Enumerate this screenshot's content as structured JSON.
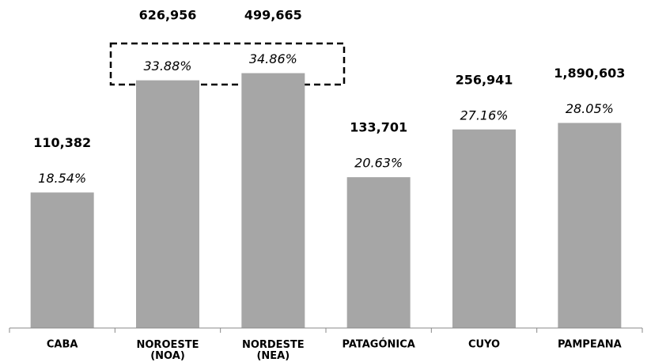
{
  "chart_data": {
    "type": "bar",
    "categories": [
      "CABA",
      "NOROESTE\n(NOA)",
      "NORDESTE\n(NEA)",
      "PATAGÓNICA",
      "CUYO",
      "PAMPEANA"
    ],
    "values": [
      18.54,
      33.88,
      34.86,
      20.63,
      27.16,
      28.05
    ],
    "value_labels": [
      "18.54%",
      "33.88%",
      "34.86%",
      "20.63%",
      "27.16%",
      "28.05%"
    ],
    "totals": [
      110382,
      626956,
      499665,
      133701,
      256941,
      1890603
    ],
    "total_labels": [
      "110,382",
      "626,956",
      "499,665",
      "133,701",
      "256,941",
      "1,890,603"
    ],
    "color": "#a6a6a6",
    "ylim": [
      0,
      40
    ]
  }
}
